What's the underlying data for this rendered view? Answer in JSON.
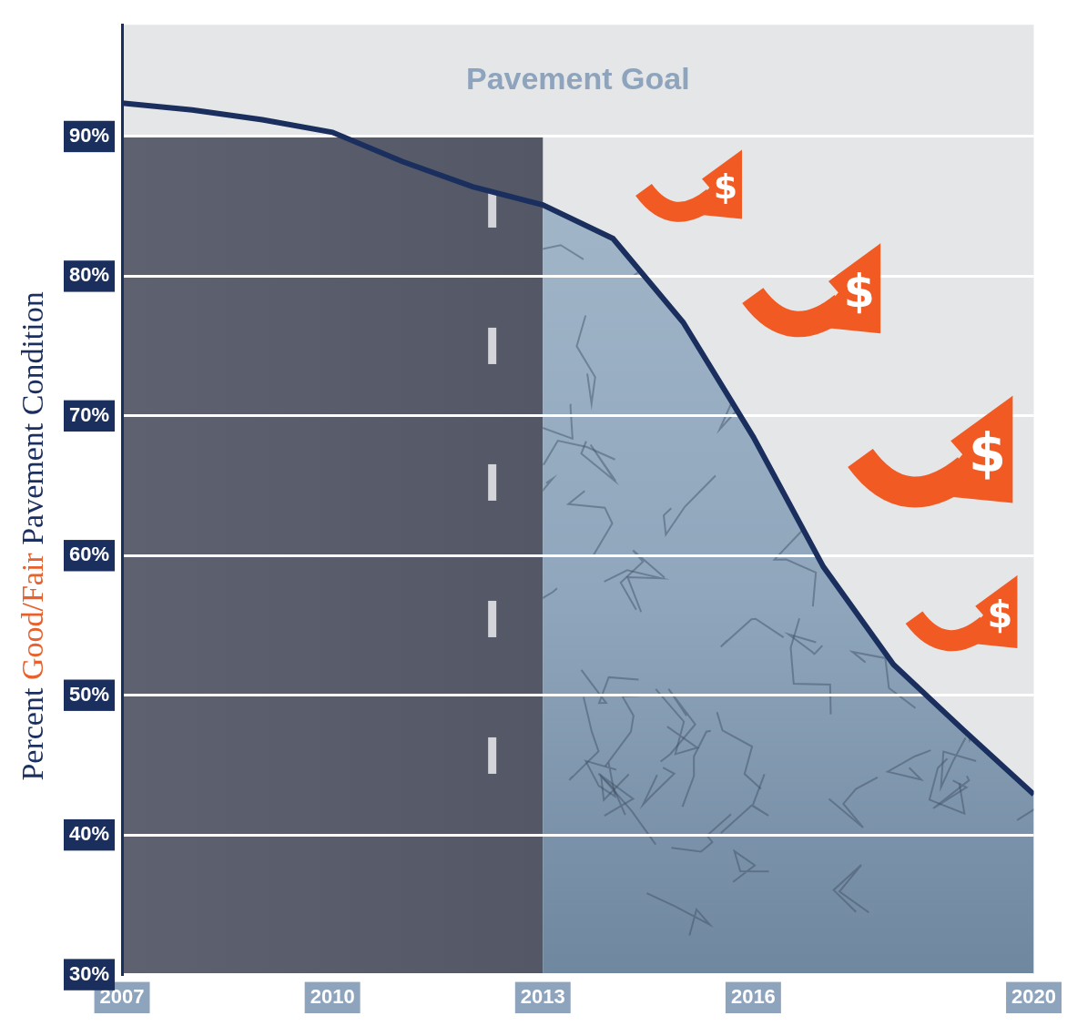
{
  "chart_data": {
    "type": "line",
    "y_label": "Percent Good/Fair Pavement Condition",
    "annotations": [
      {
        "text": "Pavement Goal"
      },
      {
        "text": "$"
      },
      {
        "text": "$"
      },
      {
        "text": "$"
      },
      {
        "text": "$"
      }
    ],
    "x": [
      2007,
      2008,
      2009,
      2010,
      2011,
      2012,
      2013,
      2014,
      2015,
      2016,
      2017,
      2018,
      2019,
      2020
    ],
    "values": [
      92.4,
      91.9,
      91.2,
      90.3,
      88.2,
      86.4,
      85.1,
      82.7,
      76.7,
      68.5,
      59.2,
      52.2,
      47.5,
      42.9
    ],
    "color": "#1b2f5e",
    "xlim": [
      2007,
      2020
    ],
    "xticks": [
      2007,
      2010,
      2013,
      2016,
      2020
    ],
    "ylim": [
      30,
      98
    ],
    "yticks": [
      {
        "value": 30,
        "label": "30%"
      },
      {
        "value": 40,
        "label": "40%"
      },
      {
        "value": 50,
        "label": "50%"
      },
      {
        "value": 60,
        "label": "60%"
      },
      {
        "value": 70,
        "label": "70%"
      },
      {
        "value": 80,
        "label": "80%"
      },
      {
        "value": 90,
        "label": "90%"
      }
    ],
    "grid": true
  }
}
